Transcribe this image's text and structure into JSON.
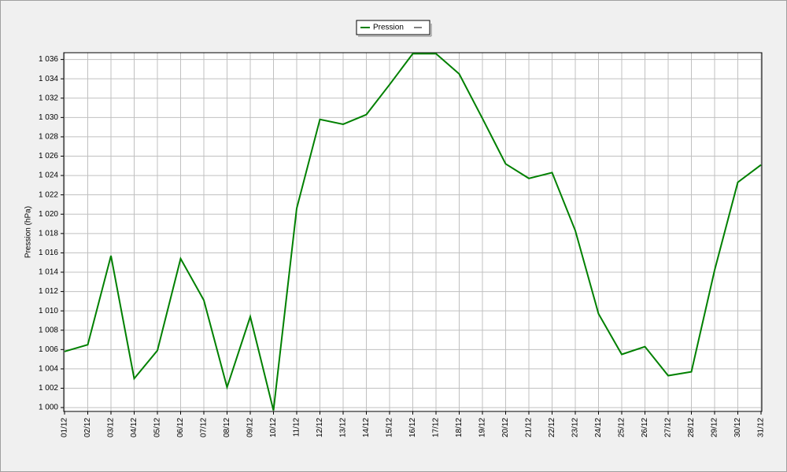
{
  "chart_data": {
    "type": "line",
    "y_label": "Pression (hPa)",
    "categories": [
      "01/12",
      "02/12",
      "03/12",
      "04/12",
      "05/12",
      "06/12",
      "07/12",
      "08/12",
      "09/12",
      "10/12",
      "11/12",
      "12/12",
      "13/12",
      "14/12",
      "15/12",
      "16/12",
      "17/12",
      "18/12",
      "19/12",
      "20/12",
      "21/12",
      "22/12",
      "23/12",
      "24/12",
      "25/12",
      "26/12",
      "27/12",
      "28/12",
      "29/12",
      "30/12",
      "31/12"
    ],
    "series": [
      {
        "name": "Pression",
        "color": "#008000",
        "values": [
          1005.8,
          1006.5,
          1015.7,
          1003.0,
          1005.9,
          1015.4,
          1011.1,
          1002.1,
          1009.4,
          999.7,
          1020.6,
          1029.8,
          1029.3,
          1030.3,
          1033.4,
          1036.6,
          1036.6,
          1034.5,
          1029.9,
          1025.2,
          1023.7,
          1024.3,
          1018.3,
          1009.7,
          1005.5,
          1006.3,
          1003.3,
          1003.7,
          1014.2,
          1023.3,
          1025.1
        ]
      }
    ],
    "ylim": [
      999.6,
      1036.7
    ],
    "yticks": [
      {
        "value": 1000,
        "label": "1 000"
      },
      {
        "value": 1002,
        "label": "1 002"
      },
      {
        "value": 1004,
        "label": "1 004"
      },
      {
        "value": 1006,
        "label": "1 006"
      },
      {
        "value": 1008,
        "label": "1 008"
      },
      {
        "value": 1010,
        "label": "1 010"
      },
      {
        "value": 1012,
        "label": "1 012"
      },
      {
        "value": 1014,
        "label": "1 014"
      },
      {
        "value": 1016,
        "label": "1 016"
      },
      {
        "value": 1018,
        "label": "1 018"
      },
      {
        "value": 1020,
        "label": "1 020"
      },
      {
        "value": 1022,
        "label": "1 022"
      },
      {
        "value": 1024,
        "label": "1 024"
      },
      {
        "value": 1026,
        "label": "1 026"
      },
      {
        "value": 1028,
        "label": "1 028"
      },
      {
        "value": 1030,
        "label": "1 030"
      },
      {
        "value": 1032,
        "label": "1 032"
      },
      {
        "value": 1034,
        "label": "1 034"
      },
      {
        "value": 1036,
        "label": "1 036"
      }
    ],
    "grid": true
  }
}
